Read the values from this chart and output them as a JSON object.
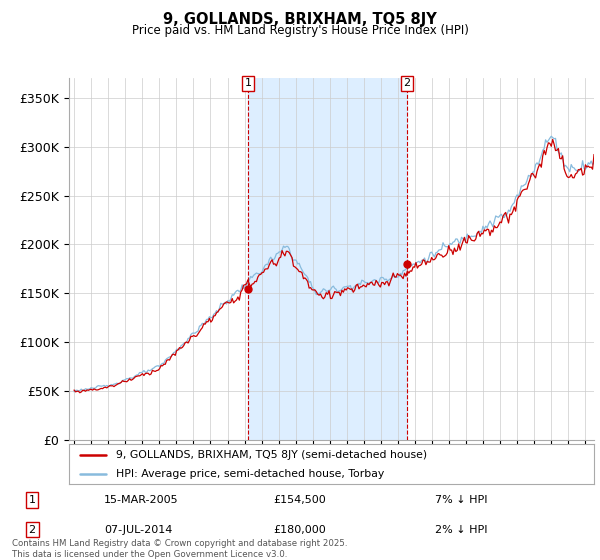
{
  "title": "9, GOLLANDS, BRIXHAM, TQ5 8JY",
  "subtitle": "Price paid vs. HM Land Registry's House Price Index (HPI)",
  "ylim": [
    0,
    370000
  ],
  "yticks": [
    0,
    50000,
    100000,
    150000,
    200000,
    250000,
    300000,
    350000
  ],
  "xstart": 1994.7,
  "xend": 2025.5,
  "purchase1": {
    "date_num": 2005.21,
    "price": 154500,
    "label": "1",
    "hpi_diff": "7% ↓ HPI",
    "date_str": "15-MAR-2005"
  },
  "purchase2": {
    "date_num": 2014.52,
    "price": 180000,
    "label": "2",
    "hpi_diff": "2% ↓ HPI",
    "date_str": "07-JUL-2014"
  },
  "line_color_price": "#cc0000",
  "line_color_hpi": "#88bbdd",
  "shade_color": "#ddeeff",
  "grid_color": "#cccccc",
  "background_color": "#ffffff",
  "legend_label_price": "9, GOLLANDS, BRIXHAM, TQ5 8JY (semi-detached house)",
  "legend_label_hpi": "HPI: Average price, semi-detached house, Torbay",
  "footer": "Contains HM Land Registry data © Crown copyright and database right 2025.\nThis data is licensed under the Open Government Licence v3.0."
}
